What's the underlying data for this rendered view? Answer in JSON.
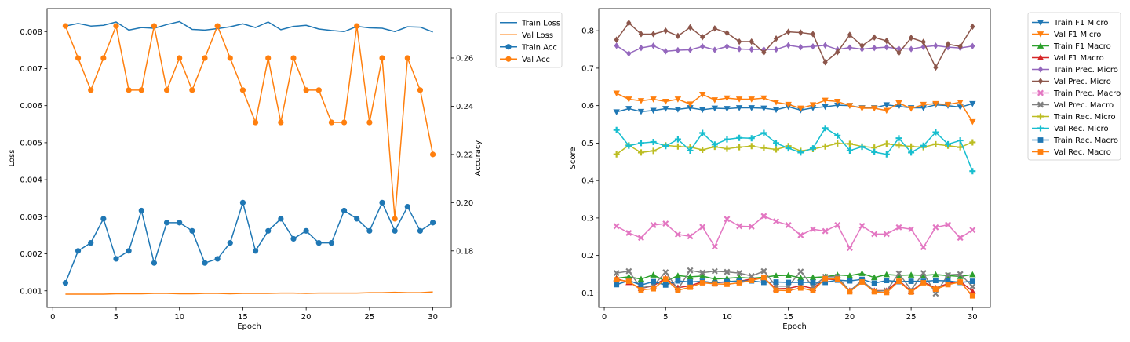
{
  "chart_data": [
    {
      "type": "line",
      "panel": "left",
      "xlabel": "Epoch",
      "ylabel": "Loss",
      "ylabel_right": "Accuracy",
      "xlim": [
        -0.45,
        31.45
      ],
      "ylim": [
        0.00055,
        0.00862
      ],
      "ylim_right": [
        0.1565,
        0.2805
      ],
      "x_ticks": [
        0,
        5,
        10,
        15,
        20,
        25,
        30
      ],
      "y_ticks": [
        0.001,
        0.002,
        0.003,
        0.004,
        0.005,
        0.006,
        0.007,
        0.008
      ],
      "y_tick_labels": [
        "0.001",
        "0.002",
        "0.003",
        "0.004",
        "0.005",
        "0.006",
        "0.007",
        "0.008"
      ],
      "y_ticks_right": [
        0.18,
        0.2,
        0.22,
        0.24,
        0.26
      ],
      "y_tick_labels_right": [
        "0.18",
        "0.20",
        "0.22",
        "0.24",
        "0.26"
      ],
      "grid": false,
      "legend_position": "outside-right",
      "x": [
        1,
        2,
        3,
        4,
        5,
        6,
        7,
        8,
        9,
        10,
        11,
        12,
        13,
        14,
        15,
        16,
        17,
        18,
        19,
        20,
        21,
        22,
        23,
        24,
        25,
        26,
        27,
        28,
        29,
        30
      ],
      "series": [
        {
          "name": "Train Loss",
          "axis": "left",
          "color": "#1f77b4",
          "marker": "none",
          "values": [
            0.00815,
            0.00822,
            0.00815,
            0.00817,
            0.00826,
            0.00804,
            0.00811,
            0.00809,
            0.00819,
            0.00827,
            0.00806,
            0.00804,
            0.00808,
            0.00813,
            0.00821,
            0.00811,
            0.00826,
            0.00805,
            0.00814,
            0.00817,
            0.00807,
            0.00803,
            0.008,
            0.00814,
            0.0081,
            0.00809,
            0.008,
            0.00813,
            0.00812,
            0.00799
          ]
        },
        {
          "name": "Val Loss",
          "axis": "left",
          "color": "#ff7f0e",
          "marker": "none",
          "values": [
            0.00091,
            0.00091,
            0.00091,
            0.00091,
            0.00092,
            0.00092,
            0.00092,
            0.00093,
            0.00093,
            0.00092,
            0.00092,
            0.00093,
            0.00093,
            0.00092,
            0.00093,
            0.00093,
            0.00093,
            0.00094,
            0.00094,
            0.00093,
            0.00094,
            0.00094,
            0.00094,
            0.00094,
            0.00095,
            0.00095,
            0.00096,
            0.00095,
            0.00095,
            0.00097
          ]
        },
        {
          "name": "Train Acc",
          "axis": "right",
          "color": "#1f77b4",
          "marker": "circle",
          "values": [
            0.1667,
            0.18,
            0.1833,
            0.1933,
            0.1767,
            0.18,
            0.1967,
            0.175,
            0.1917,
            0.1917,
            0.1883,
            0.175,
            0.1767,
            0.1833,
            0.2,
            0.18,
            0.1883,
            0.1933,
            0.185,
            0.1883,
            0.1833,
            0.1833,
            0.1967,
            0.1933,
            0.1883,
            0.2,
            0.1883,
            0.1983,
            0.1883,
            0.1917
          ]
        },
        {
          "name": "Val Acc",
          "axis": "right",
          "color": "#ff7f0e",
          "marker": "circle",
          "values": [
            0.2733,
            0.26,
            0.2467,
            0.26,
            0.2733,
            0.2467,
            0.2467,
            0.2733,
            0.2467,
            0.26,
            0.2467,
            0.26,
            0.2733,
            0.26,
            0.2467,
            0.2333,
            0.26,
            0.2333,
            0.26,
            0.2467,
            0.2467,
            0.2333,
            0.2333,
            0.2733,
            0.2333,
            0.26,
            0.1933,
            0.26,
            0.2467,
            0.22
          ]
        }
      ]
    },
    {
      "type": "line",
      "panel": "right",
      "xlabel": "Epoch",
      "ylabel": "Score",
      "xlim": [
        -0.45,
        31.45
      ],
      "ylim": [
        0.061,
        0.859
      ],
      "x_ticks": [
        0,
        5,
        10,
        15,
        20,
        25,
        30
      ],
      "y_ticks": [
        0.1,
        0.2,
        0.3,
        0.4,
        0.5,
        0.6,
        0.7,
        0.8
      ],
      "y_tick_labels": [
        "0.1",
        "0.2",
        "0.3",
        "0.4",
        "0.5",
        "0.6",
        "0.7",
        "0.8"
      ],
      "grid": false,
      "legend_position": "outside-right",
      "x": [
        1,
        2,
        3,
        4,
        5,
        6,
        7,
        8,
        9,
        10,
        11,
        12,
        13,
        14,
        15,
        16,
        17,
        18,
        19,
        20,
        21,
        22,
        23,
        24,
        25,
        26,
        27,
        28,
        29,
        30
      ],
      "series": [
        {
          "name": "Train F1 Micro",
          "color": "#1f77b4",
          "marker": "triangle-down",
          "values": [
            0.583,
            0.592,
            0.584,
            0.587,
            0.592,
            0.59,
            0.594,
            0.589,
            0.593,
            0.592,
            0.594,
            0.594,
            0.593,
            0.589,
            0.597,
            0.588,
            0.594,
            0.597,
            0.601,
            0.6,
            0.594,
            0.594,
            0.602,
            0.598,
            0.594,
            0.594,
            0.602,
            0.6,
            0.596,
            0.605
          ]
        },
        {
          "name": "Val F1 Micro",
          "color": "#ff7f0e",
          "marker": "triangle-down",
          "values": [
            0.633,
            0.617,
            0.613,
            0.617,
            0.611,
            0.617,
            0.604,
            0.63,
            0.615,
            0.62,
            0.617,
            0.617,
            0.62,
            0.609,
            0.603,
            0.593,
            0.602,
            0.614,
            0.611,
            0.6,
            0.593,
            0.593,
            0.587,
            0.607,
            0.592,
            0.603,
            0.605,
            0.603,
            0.609,
            0.557
          ]
        },
        {
          "name": "Train F1 Macro",
          "color": "#2ca02c",
          "marker": "triangle-up",
          "values": [
            0.139,
            0.143,
            0.137,
            0.148,
            0.131,
            0.146,
            0.143,
            0.145,
            0.137,
            0.139,
            0.141,
            0.139,
            0.142,
            0.146,
            0.147,
            0.14,
            0.141,
            0.143,
            0.148,
            0.146,
            0.152,
            0.141,
            0.149,
            0.147,
            0.148,
            0.147,
            0.149,
            0.146,
            0.144,
            0.149
          ]
        },
        {
          "name": "Val F1 Macro",
          "color": "#d62728",
          "marker": "triangle-up",
          "values": [
            0.138,
            0.128,
            0.112,
            0.119,
            0.139,
            0.114,
            0.119,
            0.13,
            0.127,
            0.129,
            0.131,
            0.137,
            0.14,
            0.111,
            0.112,
            0.119,
            0.112,
            0.137,
            0.135,
            0.106,
            0.13,
            0.106,
            0.106,
            0.133,
            0.104,
            0.129,
            0.113,
            0.125,
            0.131,
            0.104
          ]
        },
        {
          "name": "Train Prec. Micro",
          "color": "#9467bd",
          "marker": "diamond",
          "values": [
            0.76,
            0.739,
            0.754,
            0.76,
            0.745,
            0.748,
            0.749,
            0.758,
            0.749,
            0.758,
            0.751,
            0.75,
            0.75,
            0.75,
            0.761,
            0.756,
            0.758,
            0.761,
            0.75,
            0.755,
            0.751,
            0.754,
            0.756,
            0.752,
            0.751,
            0.757,
            0.76,
            0.756,
            0.754,
            0.759
          ]
        },
        {
          "name": "Val Prec. Micro",
          "color": "#8c564b",
          "marker": "diamond",
          "values": [
            0.776,
            0.821,
            0.791,
            0.791,
            0.8,
            0.786,
            0.809,
            0.783,
            0.806,
            0.794,
            0.771,
            0.771,
            0.742,
            0.779,
            0.797,
            0.795,
            0.791,
            0.716,
            0.743,
            0.789,
            0.76,
            0.782,
            0.773,
            0.741,
            0.781,
            0.77,
            0.702,
            0.764,
            0.758,
            0.811
          ]
        },
        {
          "name": "Train Prec. Macro",
          "color": "#e377c2",
          "marker": "x",
          "values": [
            0.278,
            0.26,
            0.247,
            0.281,
            0.285,
            0.256,
            0.251,
            0.276,
            0.224,
            0.297,
            0.278,
            0.277,
            0.305,
            0.291,
            0.281,
            0.254,
            0.27,
            0.265,
            0.281,
            0.22,
            0.279,
            0.257,
            0.257,
            0.275,
            0.27,
            0.222,
            0.275,
            0.282,
            0.247,
            0.268
          ]
        },
        {
          "name": "Val Prec. Macro",
          "color": "#7f7f7f",
          "marker": "x",
          "values": [
            0.153,
            0.158,
            0.113,
            0.12,
            0.155,
            0.11,
            0.16,
            0.154,
            0.158,
            0.156,
            0.153,
            0.145,
            0.158,
            0.118,
            0.118,
            0.157,
            0.117,
            0.143,
            0.143,
            0.105,
            0.133,
            0.105,
            0.106,
            0.152,
            0.108,
            0.153,
            0.098,
            0.148,
            0.15,
            0.117
          ]
        },
        {
          "name": "Train Rec. Micro",
          "color": "#bcbd22",
          "marker": "plus",
          "values": [
            0.47,
            0.494,
            0.475,
            0.479,
            0.494,
            0.491,
            0.489,
            0.482,
            0.49,
            0.485,
            0.489,
            0.492,
            0.487,
            0.483,
            0.492,
            0.479,
            0.484,
            0.491,
            0.499,
            0.498,
            0.491,
            0.488,
            0.498,
            0.494,
            0.491,
            0.489,
            0.497,
            0.493,
            0.489,
            0.502
          ]
        },
        {
          "name": "Val Rec. Micro",
          "color": "#17becf",
          "marker": "plus",
          "values": [
            0.535,
            0.493,
            0.5,
            0.503,
            0.492,
            0.51,
            0.48,
            0.527,
            0.496,
            0.51,
            0.514,
            0.513,
            0.527,
            0.5,
            0.486,
            0.475,
            0.486,
            0.54,
            0.52,
            0.48,
            0.49,
            0.476,
            0.47,
            0.513,
            0.475,
            0.493,
            0.529,
            0.497,
            0.507,
            0.425
          ]
        },
        {
          "name": "Train Rec. Macro",
          "color": "#1f77b4",
          "marker": "square",
          "values": [
            0.122,
            0.133,
            0.121,
            0.13,
            0.121,
            0.132,
            0.129,
            0.131,
            0.127,
            0.13,
            0.132,
            0.132,
            0.128,
            0.129,
            0.128,
            0.128,
            0.128,
            0.128,
            0.134,
            0.132,
            0.136,
            0.126,
            0.133,
            0.13,
            0.131,
            0.131,
            0.133,
            0.132,
            0.128,
            0.131
          ]
        },
        {
          "name": "Val Rec. Macro",
          "color": "#ff7f0e",
          "marker": "square",
          "values": [
            0.135,
            0.131,
            0.108,
            0.111,
            0.137,
            0.107,
            0.115,
            0.127,
            0.124,
            0.123,
            0.127,
            0.133,
            0.141,
            0.107,
            0.106,
            0.113,
            0.106,
            0.138,
            0.137,
            0.103,
            0.129,
            0.103,
            0.101,
            0.131,
            0.102,
            0.127,
            0.11,
            0.122,
            0.129,
            0.092
          ]
        }
      ]
    }
  ]
}
